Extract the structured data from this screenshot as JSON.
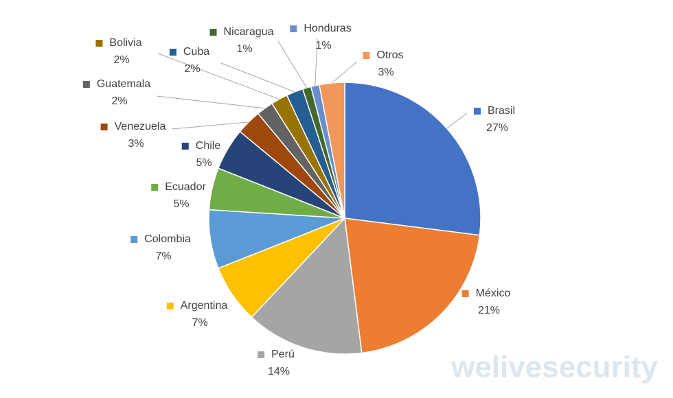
{
  "chart_data": {
    "type": "pie",
    "categories": [
      "Brasil",
      "México",
      "Perú",
      "Argentina",
      "Colombia",
      "Ecuador",
      "Chile",
      "Venezuela",
      "Guatemala",
      "Bolivia",
      "Cuba",
      "Nicaragua",
      "Honduras",
      "Otros"
    ],
    "values": [
      27,
      21,
      14,
      7,
      7,
      5,
      5,
      3,
      2,
      2,
      2,
      1,
      1,
      3
    ],
    "value_labels": [
      "27%",
      "21%",
      "14%",
      "7%",
      "7%",
      "5%",
      "5%",
      "3%",
      "2%",
      "2%",
      "2%",
      "1%",
      "1%",
      "3%"
    ],
    "colors": [
      "#4472c4",
      "#ed7d31",
      "#a5a5a5",
      "#ffc000",
      "#5b9bd5",
      "#70ad47",
      "#264478",
      "#9e480e",
      "#636363",
      "#997300",
      "#255e91",
      "#43682b",
      "#698ed0",
      "#f1975a"
    ],
    "watermark": "welivesecurity"
  }
}
